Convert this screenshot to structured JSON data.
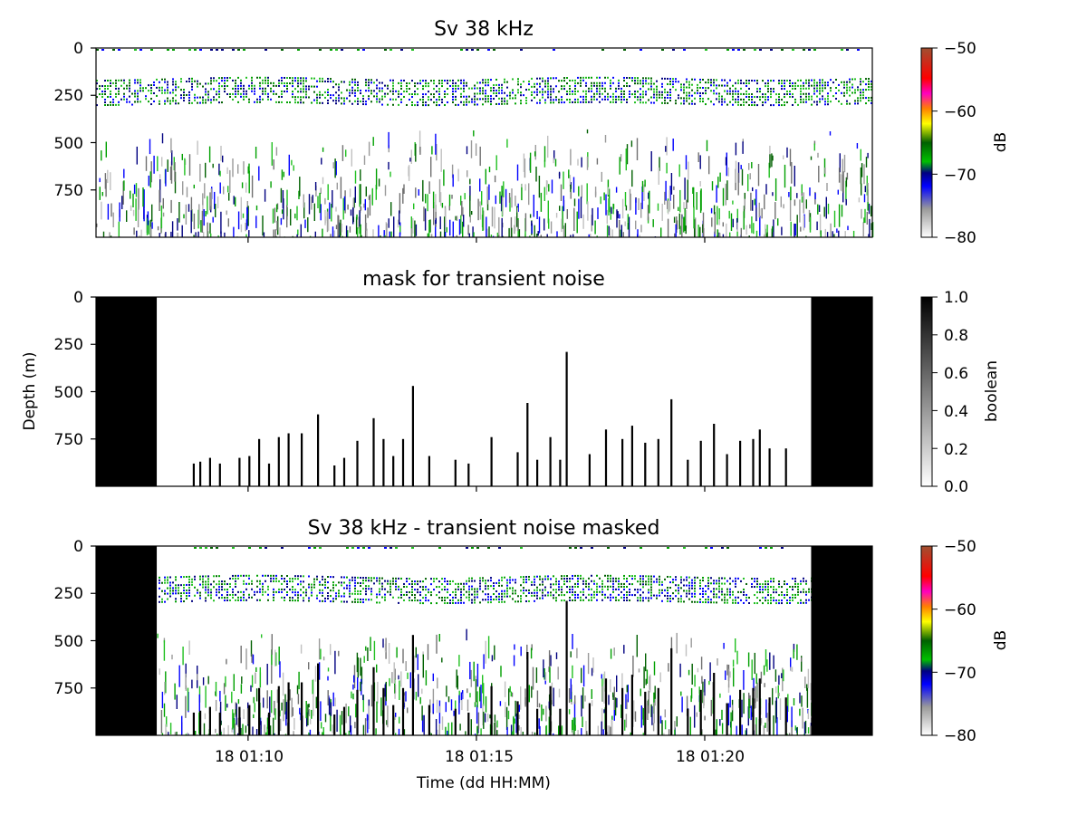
{
  "figure": {
    "ylabel_shared": "Depth (m)",
    "xlabel": "Time (dd HH:MM)"
  },
  "chart_data": [
    {
      "type": "heatmap",
      "title": "Sv 38 kHz",
      "x_ticks": [
        "",
        "",
        ""
      ],
      "y_ticks": [
        "0",
        "250",
        "500",
        "750"
      ],
      "ylim": [
        1000,
        0
      ],
      "colorbar": {
        "label": "dB",
        "range": [
          -80,
          -50
        ],
        "ticks": [
          "−50",
          "−60",
          "−70",
          "−80"
        ],
        "colormap": "EK500"
      },
      "layers": [
        {
          "name": "scattering layer",
          "depth_top": 160,
          "depth_bottom": 290,
          "sv_db": -65
        },
        {
          "name": "diffuse scatter",
          "depth_top": 430,
          "depth_bottom": 1000,
          "sv_db": -75
        }
      ]
    },
    {
      "type": "heatmap",
      "title": "mask for transient noise",
      "x_ticks": [
        "",
        "",
        ""
      ],
      "y_ticks": [
        "0",
        "250",
        "500",
        "750"
      ],
      "ylim": [
        1000,
        0
      ],
      "colorbar": {
        "label": "boolean",
        "range": [
          0,
          1
        ],
        "ticks": [
          "1.0",
          "0.8",
          "0.6",
          "0.4",
          "0.2",
          "0.0"
        ],
        "colormap": "gray_r"
      },
      "masked_blocks": [
        {
          "name": "start block",
          "time_start": "18 01:06:40",
          "time_end": "18 01:08:10",
          "depth_top": 0
        },
        {
          "name": "end block",
          "time_start": "18 01:22:20",
          "time_end": "18 01:23:40",
          "depth_top": 0
        }
      ],
      "spikes": [
        {
          "t": 1.1,
          "d": 880
        },
        {
          "t": 1.3,
          "d": 870
        },
        {
          "t": 1.6,
          "d": 850
        },
        {
          "t": 1.9,
          "d": 880
        },
        {
          "t": 2.5,
          "d": 850
        },
        {
          "t": 2.8,
          "d": 840
        },
        {
          "t": 3.1,
          "d": 750
        },
        {
          "t": 3.4,
          "d": 880
        },
        {
          "t": 3.7,
          "d": 740
        },
        {
          "t": 4.0,
          "d": 720
        },
        {
          "t": 4.4,
          "d": 720
        },
        {
          "t": 4.9,
          "d": 620
        },
        {
          "t": 5.4,
          "d": 890
        },
        {
          "t": 5.7,
          "d": 850
        },
        {
          "t": 6.1,
          "d": 760
        },
        {
          "t": 6.6,
          "d": 640
        },
        {
          "t": 6.9,
          "d": 750
        },
        {
          "t": 7.2,
          "d": 840
        },
        {
          "t": 7.5,
          "d": 750
        },
        {
          "t": 7.8,
          "d": 470
        },
        {
          "t": 8.3,
          "d": 840
        },
        {
          "t": 9.1,
          "d": 860
        },
        {
          "t": 9.5,
          "d": 880
        },
        {
          "t": 10.2,
          "d": 740
        },
        {
          "t": 11.0,
          "d": 820
        },
        {
          "t": 11.3,
          "d": 560
        },
        {
          "t": 11.6,
          "d": 860
        },
        {
          "t": 12.0,
          "d": 740
        },
        {
          "t": 12.3,
          "d": 860
        },
        {
          "t": 12.5,
          "d": 290
        },
        {
          "t": 13.2,
          "d": 830
        },
        {
          "t": 13.7,
          "d": 700
        },
        {
          "t": 14.2,
          "d": 750
        },
        {
          "t": 14.5,
          "d": 680
        },
        {
          "t": 14.9,
          "d": 770
        },
        {
          "t": 15.3,
          "d": 750
        },
        {
          "t": 15.7,
          "d": 540
        },
        {
          "t": 16.2,
          "d": 860
        },
        {
          "t": 16.6,
          "d": 760
        },
        {
          "t": 17.0,
          "d": 670
        },
        {
          "t": 17.4,
          "d": 830
        },
        {
          "t": 17.8,
          "d": 760
        },
        {
          "t": 18.2,
          "d": 750
        },
        {
          "t": 18.4,
          "d": 700
        },
        {
          "t": 18.7,
          "d": 800
        },
        {
          "t": 19.2,
          "d": 800
        }
      ]
    },
    {
      "type": "heatmap",
      "title": "Sv 38 kHz - transient noise masked",
      "x_ticks": [
        "18 01:10",
        "18 01:15",
        "18 01:20"
      ],
      "y_ticks": [
        "0",
        "250",
        "500",
        "750"
      ],
      "ylim": [
        1000,
        0
      ],
      "colorbar": {
        "label": "dB",
        "range": [
          -80,
          -50
        ],
        "ticks": [
          "−50",
          "−60",
          "−70",
          "−80"
        ],
        "colormap": "EK500"
      }
    }
  ]
}
